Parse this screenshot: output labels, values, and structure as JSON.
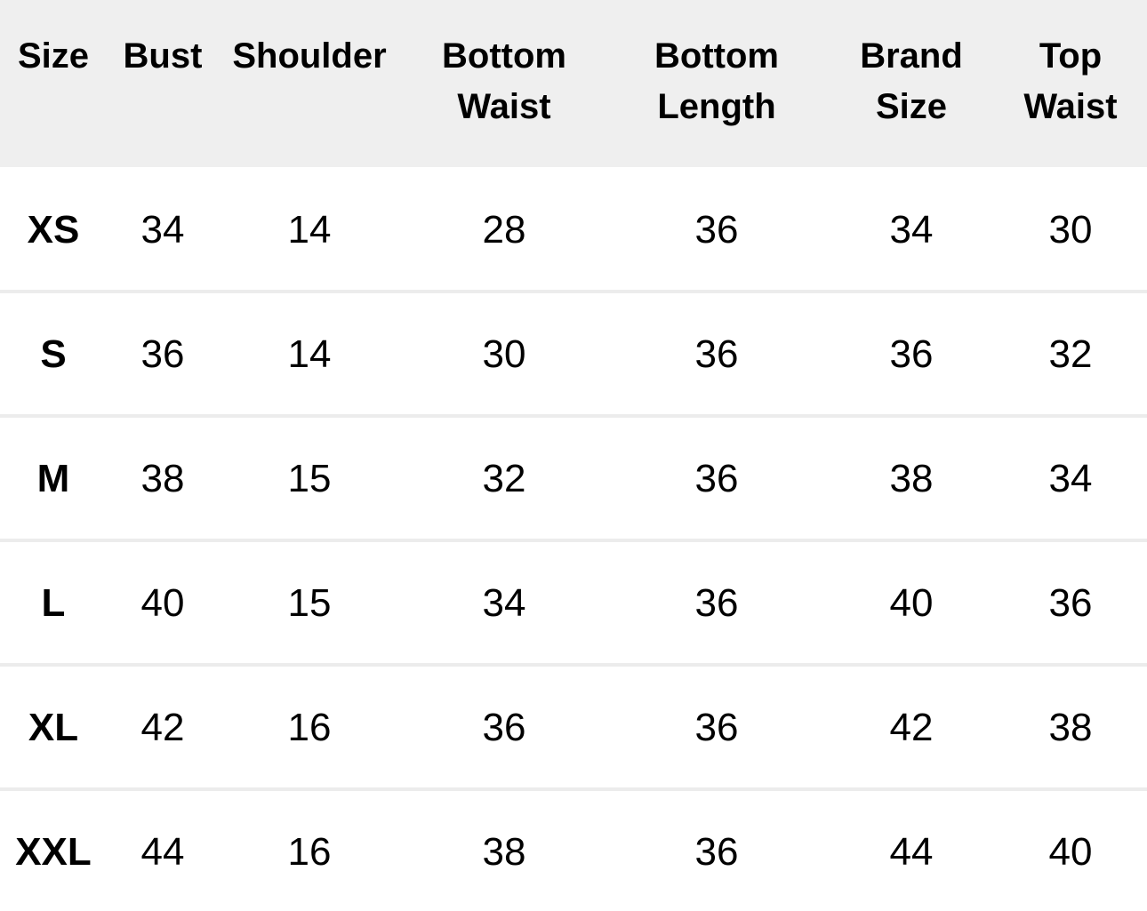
{
  "table": {
    "header": [
      [
        "Size"
      ],
      [
        "Bust"
      ],
      [
        "Shoulder"
      ],
      [
        "Bottom",
        "Waist"
      ],
      [
        "Bottom",
        "Length"
      ],
      [
        "Brand",
        "Size"
      ],
      [
        "Top",
        "Waist"
      ]
    ],
    "rows": [
      [
        "XS",
        34,
        14,
        28,
        36,
        34,
        30
      ],
      [
        "S",
        36,
        14,
        30,
        36,
        36,
        32
      ],
      [
        "M",
        38,
        15,
        32,
        36,
        38,
        34
      ],
      [
        "L",
        40,
        15,
        34,
        36,
        40,
        36
      ],
      [
        "XL",
        42,
        16,
        36,
        36,
        42,
        38
      ],
      [
        "XXL",
        44,
        16,
        38,
        36,
        44,
        40
      ]
    ]
  }
}
